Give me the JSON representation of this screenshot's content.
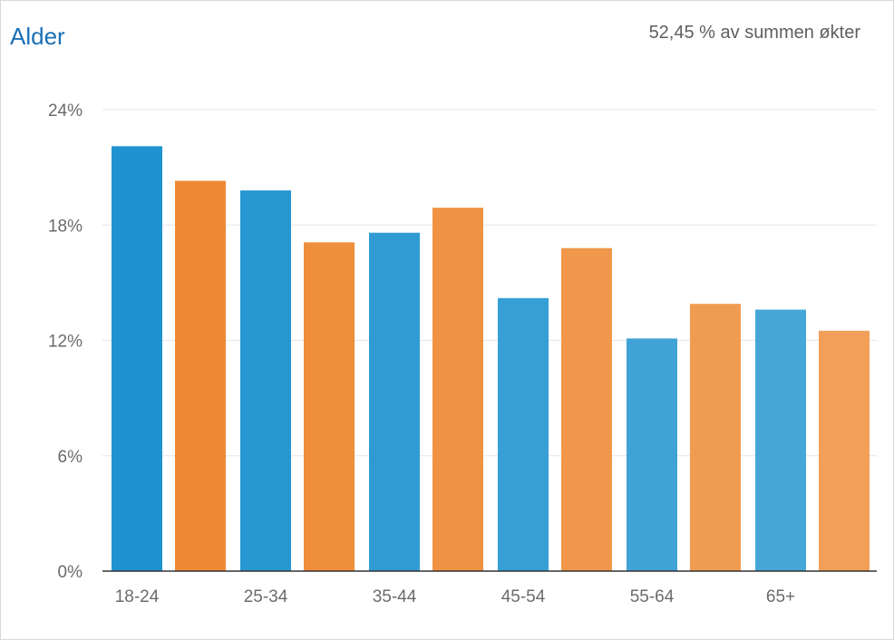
{
  "header": {
    "title": "Alder",
    "summary": "52,45 % av summen økter"
  },
  "chart_data": {
    "type": "bar",
    "title": "Alder",
    "subtitle": "52,45 % av summen økter",
    "xlabel": "",
    "ylabel": "",
    "categories": [
      "18-24",
      "25-34",
      "35-44",
      "45-54",
      "55-64",
      "65+"
    ],
    "series": [
      {
        "color": "#1f93cf",
        "values": [
          22.1,
          19.8,
          17.6,
          14.2,
          12.1,
          13.6
        ]
      },
      {
        "color": "#ee8a35",
        "values": [
          20.3,
          17.1,
          18.9,
          16.8,
          13.9,
          12.5
        ]
      }
    ],
    "ylim": [
      0,
      24
    ],
    "yticks": [
      0,
      6,
      12,
      18,
      24
    ],
    "ytick_labels": [
      "0%",
      "6%",
      "12%",
      "18%",
      "24%"
    ],
    "grid": true,
    "legend": "none"
  }
}
